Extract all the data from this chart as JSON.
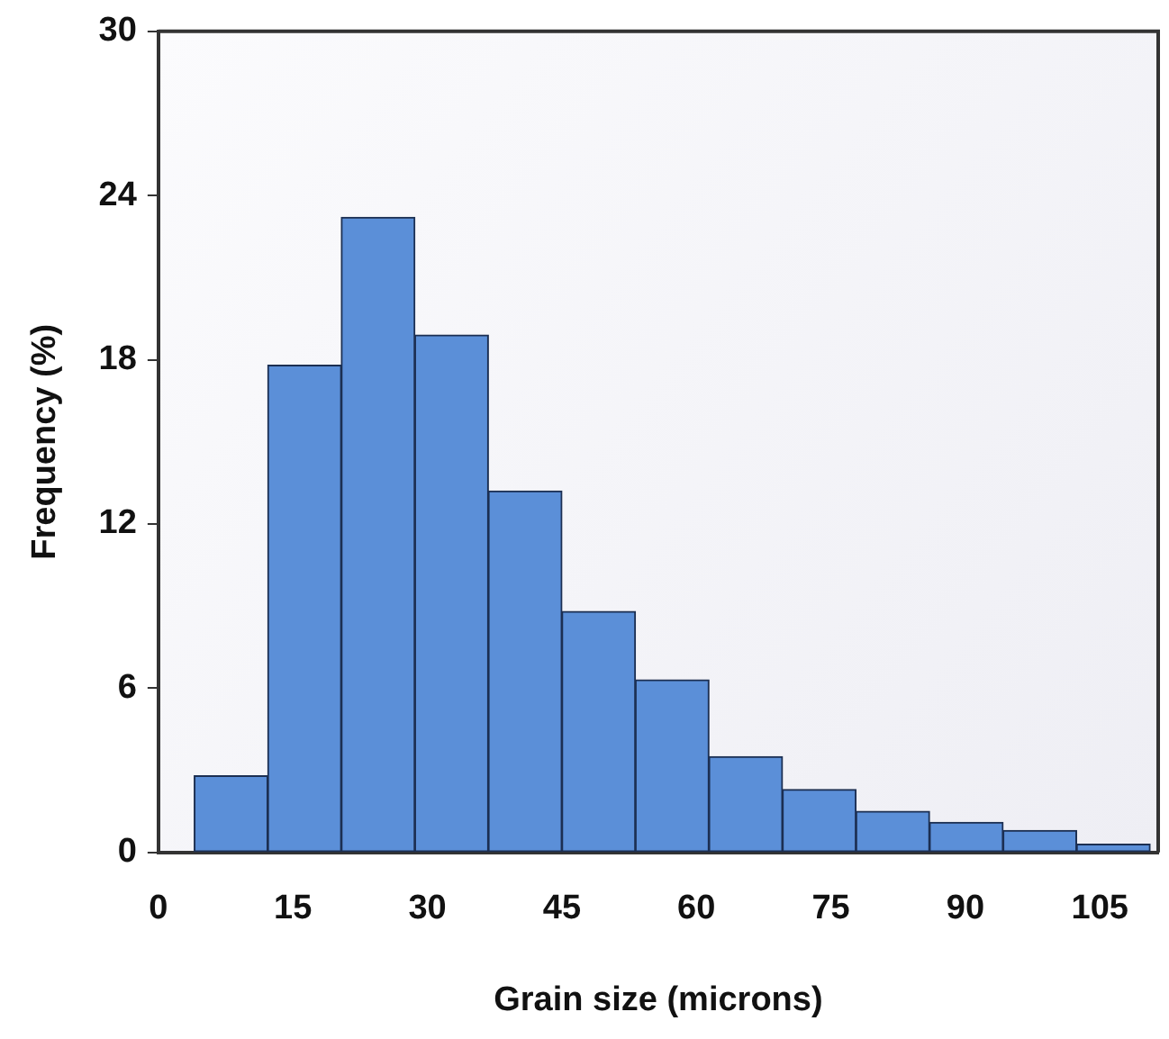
{
  "chart_data": {
    "type": "histogram",
    "xlabel": "Grain size (microns)",
    "ylabel": "Frequency (%)",
    "bins": [
      4,
      12.2,
      20.4,
      28.6,
      36.8,
      45,
      53.2,
      61.4,
      69.6,
      77.8,
      86,
      94.2,
      102.4,
      110.6
    ],
    "values": [
      2.8,
      17.8,
      23.2,
      18.9,
      13.2,
      8.8,
      6.3,
      3.5,
      2.3,
      1.5,
      1.1,
      0.8,
      0.3
    ],
    "color": "#5b8fd8",
    "xlim": [
      0,
      111.5
    ],
    "xticks": [
      0,
      15,
      30,
      45,
      60,
      75,
      90,
      105
    ],
    "ylim": [
      0,
      30
    ],
    "yticks": [
      0,
      6,
      12,
      18,
      24,
      30
    ],
    "grid": false,
    "legend": false
  }
}
